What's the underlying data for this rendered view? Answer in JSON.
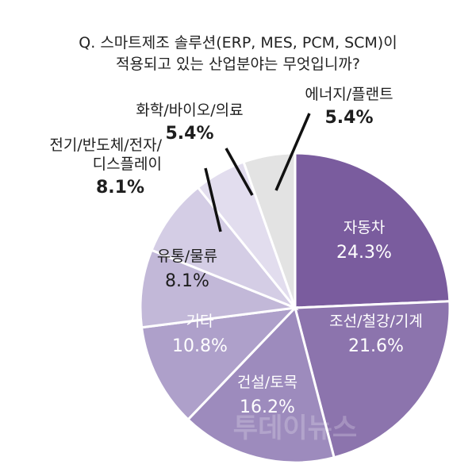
{
  "chart_data": {
    "type": "pie",
    "title": "Q. 스마트제조 솔루션(ERP, MES, PCM, SCM)이 적용되고 있는 산업분야는 무엇입니까?",
    "title_lines": [
      "Q. 스마트제조 솔루션(ERP, MES, PCM, SCM)이",
      "적용되고 있는 산업분야는 무엇입니까?"
    ],
    "unit": "%",
    "slices": [
      {
        "label": "자동차",
        "label_lines": [
          "자동차"
        ],
        "value": 24.3,
        "value_text": "24.3%",
        "color": "#7a5c9e"
      },
      {
        "label": "조선/철강/기계",
        "label_lines": [
          "조선/철강/기계"
        ],
        "value": 21.6,
        "value_text": "21.6%",
        "color": "#8c74ad"
      },
      {
        "label": "건설/토목",
        "label_lines": [
          "건설/토목"
        ],
        "value": 16.2,
        "value_text": "16.2%",
        "color": "#9d8bbd"
      },
      {
        "label": "기타",
        "label_lines": [
          "기타"
        ],
        "value": 10.8,
        "value_text": "10.8%",
        "color": "#aea0ca"
      },
      {
        "label": "유통/물류",
        "label_lines": [
          "유통/물류"
        ],
        "value": 8.1,
        "value_text": "8.1%",
        "color": "#c2b8d8"
      },
      {
        "label": "전기/반도체/전자/디스플레이",
        "label_lines": [
          "전기/반도체/전자/",
          "디스플레이"
        ],
        "value": 8.1,
        "value_text": "8.1%",
        "color": "#d4cde5"
      },
      {
        "label": "화학/바이오/의료",
        "label_lines": [
          "화학/바이오/의료"
        ],
        "value": 5.4,
        "value_text": "5.4%",
        "color": "#e2ddee"
      },
      {
        "label": "에너지/플랜트",
        "label_lines": [
          "에너지/플랜트"
        ],
        "value": 5.4,
        "value_text": "5.4%",
        "color": "#e3e3e3"
      }
    ]
  },
  "watermark": "투데이뉴스"
}
